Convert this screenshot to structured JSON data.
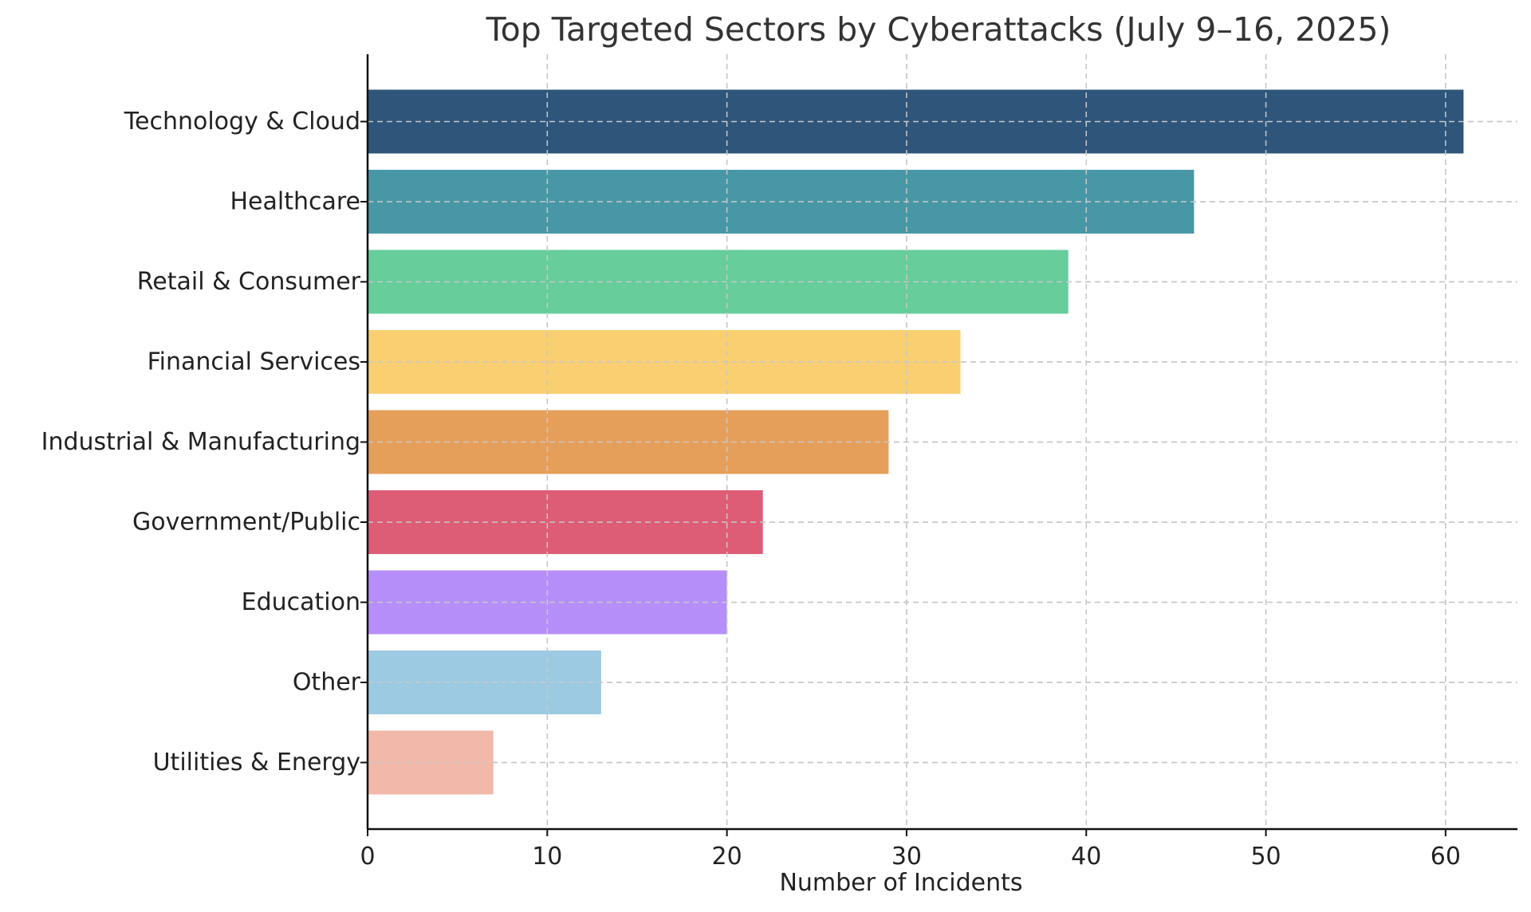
{
  "chart_data": {
    "type": "bar",
    "orientation": "horizontal",
    "title": "Top Targeted Sectors by Cyberattacks (July 9–16, 2025)",
    "xlabel": "Number of Incidents",
    "ylabel": "",
    "categories": [
      "Technology & Cloud",
      "Healthcare",
      "Retail & Consumer",
      "Financial Services",
      "Industrial & Manufacturing",
      "Government/Public",
      "Education",
      "Other",
      "Utilities & Energy"
    ],
    "values": [
      61,
      46,
      39,
      33,
      29,
      22,
      20,
      13,
      7
    ],
    "colors": [
      "#2e557a",
      "#4897a6",
      "#66cd9b",
      "#f9cf72",
      "#e69f5a",
      "#dc5d75",
      "#b68efa",
      "#9ccae2",
      "#f2b8aa"
    ],
    "xlim": [
      0,
      64
    ],
    "xticks": [
      0,
      10,
      20,
      30,
      40,
      50,
      60
    ],
    "grid": true,
    "legend": "none"
  }
}
